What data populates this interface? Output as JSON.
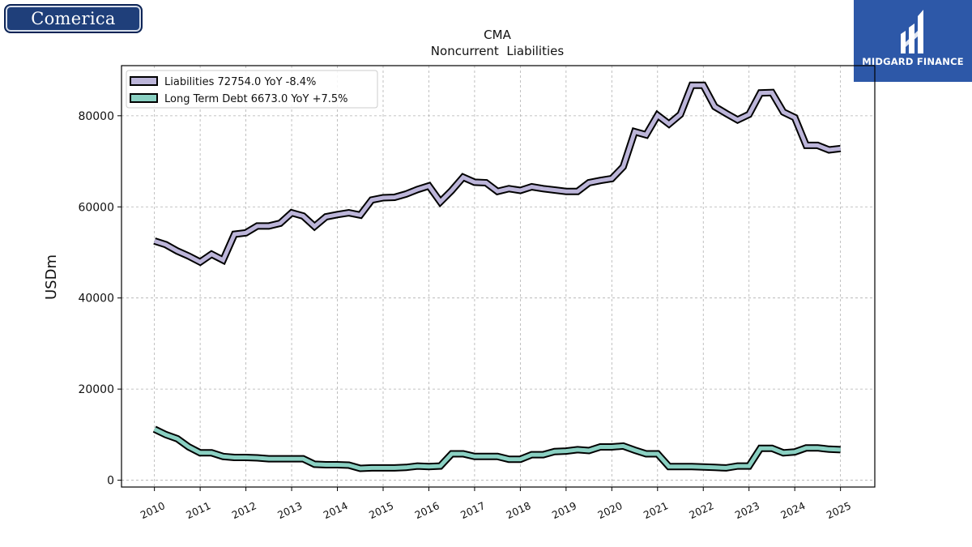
{
  "logos": {
    "left": "Comerica",
    "right": "MIDGARD FINANCE"
  },
  "chart_data": {
    "type": "line",
    "title": "CMA",
    "subtitle": "Noncurrent  Liabilities",
    "ylabel": "USDm",
    "xlabel": "",
    "ylim": [
      -1500,
      91000
    ],
    "xlim": [
      2009.28,
      2025.75
    ],
    "yticks": [
      0,
      20000,
      40000,
      60000,
      80000
    ],
    "xticks": [
      "2010",
      "2011",
      "2012",
      "2013",
      "2014",
      "2015",
      "2016",
      "2017",
      "2018",
      "2019",
      "2020",
      "2021",
      "2022",
      "2023",
      "2024",
      "2025"
    ],
    "grid": true,
    "legend_position": "top-left",
    "series": [
      {
        "name": "Liabilities  72754.0 YoY -8.4%",
        "color": "#bcb5d9",
        "x": [
          "2010-01",
          "2010-04",
          "2010-07",
          "2010-10",
          "2011-01",
          "2011-04",
          "2011-07",
          "2011-10",
          "2012-01",
          "2012-04",
          "2012-07",
          "2012-10",
          "2013-01",
          "2013-04",
          "2013-07",
          "2013-10",
          "2014-01",
          "2014-04",
          "2014-07",
          "2014-10",
          "2015-01",
          "2015-04",
          "2015-07",
          "2015-10",
          "2016-01",
          "2016-04",
          "2016-07",
          "2016-10",
          "2017-01",
          "2017-04",
          "2017-07",
          "2017-10",
          "2018-01",
          "2018-04",
          "2018-07",
          "2018-10",
          "2019-01",
          "2019-04",
          "2019-07",
          "2019-10",
          "2020-01",
          "2020-04",
          "2020-07",
          "2020-10",
          "2021-01",
          "2021-04",
          "2021-07",
          "2021-10",
          "2022-01",
          "2022-04",
          "2022-07",
          "2022-10",
          "2023-01",
          "2023-04",
          "2023-07",
          "2023-10",
          "2024-01",
          "2024-04",
          "2024-07",
          "2024-10",
          "2025-01"
        ],
        "values": [
          52500,
          51700,
          50300,
          49200,
          47900,
          49600,
          48300,
          54000,
          54300,
          55800,
          55800,
          56400,
          58700,
          58000,
          55700,
          57800,
          58300,
          58700,
          58200,
          61500,
          62000,
          62100,
          62800,
          63800,
          64600,
          61100,
          63600,
          66500,
          65400,
          65300,
          63400,
          64000,
          63600,
          64400,
          64000,
          63700,
          63400,
          63400,
          65300,
          65800,
          66200,
          68800,
          76500,
          75800,
          80100,
          78200,
          80300,
          86700,
          86700,
          82000,
          80500,
          79100,
          80300,
          85000,
          85100,
          80800,
          79600,
          73500,
          73500,
          72500,
          72800
        ]
      },
      {
        "name": "Long Term Debt  6673.0 YoY +7.5%",
        "color": "#8ad0c2",
        "x": [
          "2010-01",
          "2010-04",
          "2010-07",
          "2010-10",
          "2011-01",
          "2011-04",
          "2011-07",
          "2011-10",
          "2012-01",
          "2012-04",
          "2012-07",
          "2012-10",
          "2013-01",
          "2013-04",
          "2013-07",
          "2013-10",
          "2014-01",
          "2014-04",
          "2014-07",
          "2014-10",
          "2015-01",
          "2015-04",
          "2015-07",
          "2015-10",
          "2016-01",
          "2016-04",
          "2016-07",
          "2016-10",
          "2017-01",
          "2017-04",
          "2017-07",
          "2017-10",
          "2018-01",
          "2018-04",
          "2018-07",
          "2018-10",
          "2019-01",
          "2019-04",
          "2019-07",
          "2019-10",
          "2020-01",
          "2020-04",
          "2020-07",
          "2020-10",
          "2021-01",
          "2021-04",
          "2021-07",
          "2021-10",
          "2022-01",
          "2022-04",
          "2022-07",
          "2022-10",
          "2023-01",
          "2023-04",
          "2023-07",
          "2023-10",
          "2024-01",
          "2024-04",
          "2024-07",
          "2024-10",
          "2025-01"
        ],
        "values": [
          11200,
          10000,
          9100,
          7300,
          6000,
          6000,
          5200,
          5000,
          5000,
          4900,
          4700,
          4700,
          4700,
          4700,
          3500,
          3400,
          3400,
          3300,
          2600,
          2700,
          2700,
          2700,
          2800,
          3100,
          3000,
          3100,
          5800,
          5800,
          5200,
          5200,
          5200,
          4600,
          4600,
          5600,
          5600,
          6300,
          6400,
          6700,
          6500,
          7300,
          7300,
          7500,
          6600,
          5800,
          5800,
          3000,
          3000,
          3000,
          2900,
          2800,
          2700,
          3100,
          3100,
          7000,
          7000,
          6000,
          6200,
          7100,
          7100,
          6800,
          6700
        ]
      }
    ]
  }
}
